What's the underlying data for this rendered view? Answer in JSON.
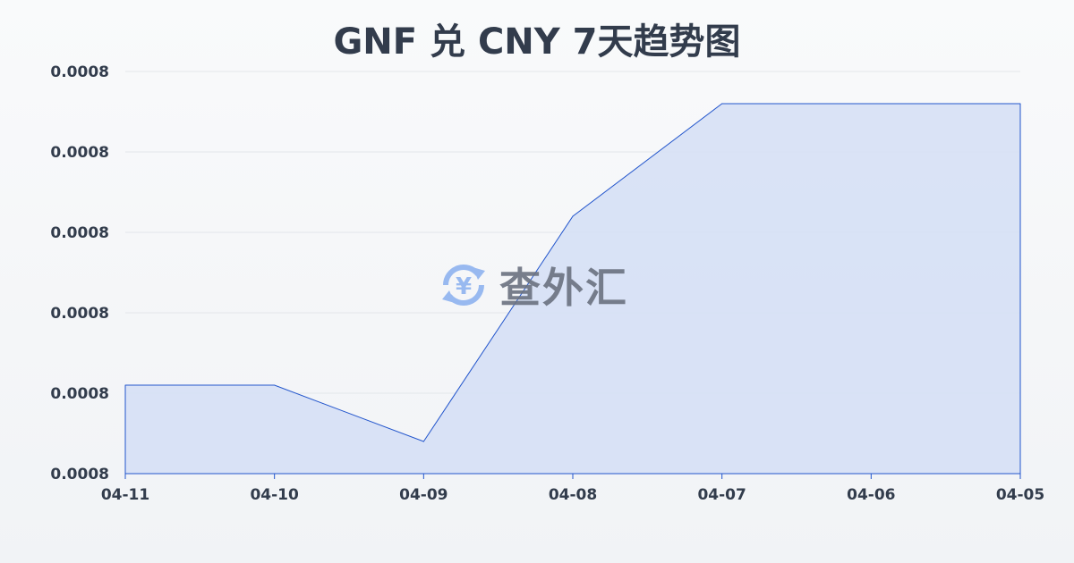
{
  "chart_data": {
    "type": "area",
    "title": "GNF 兑 CNY 7天趋势图",
    "xlabel": "",
    "ylabel": "",
    "categories": [
      "04-11",
      "04-10",
      "04-09",
      "04-08",
      "04-07",
      "04-06",
      "04-05"
    ],
    "series": [
      {
        "values": [
          0.0008022,
          0.0008022,
          0.0008008,
          0.0008064,
          0.0008092,
          0.0008092,
          0.0008092
        ]
      }
    ],
    "ylim": [
      0.0008,
      0.00081
    ],
    "y_ticks": [
      0.00081,
      0.000808,
      0.000806,
      0.000804,
      0.000802,
      0.0008
    ],
    "y_tick_labels": [
      "0.0008",
      "0.0008",
      "0.0008",
      "0.0008",
      "0.0008",
      "0.0008"
    ],
    "grid": true,
    "colors": {
      "line": "#2255cc",
      "fill": "#d6e0f5",
      "grid": "#e3e6ea",
      "text": "#323c4c"
    }
  },
  "watermark": {
    "text": "查外汇",
    "icon": "yen-exchange-icon"
  }
}
